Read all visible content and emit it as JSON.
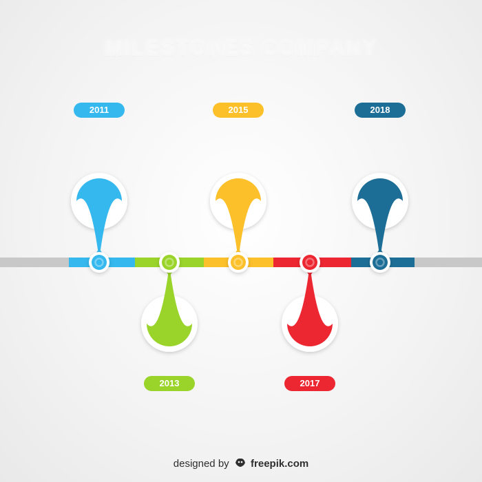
{
  "title": "MILESTONES COMPANY",
  "milestones": [
    {
      "year": "2011",
      "color": "#35b8ee",
      "direction": "up"
    },
    {
      "year": "2013",
      "color": "#9ad42a",
      "direction": "down"
    },
    {
      "year": "2015",
      "color": "#fcc02b",
      "direction": "up"
    },
    {
      "year": "2017",
      "color": "#ed2731",
      "direction": "down"
    },
    {
      "year": "2018",
      "color": "#1d6e97",
      "direction": "up"
    }
  ],
  "timeline": {
    "base_color": "#c8c8c8"
  },
  "credit": {
    "prefix": "designed by",
    "brand": "freepik.com",
    "icon": "freepik-logo-icon"
  }
}
